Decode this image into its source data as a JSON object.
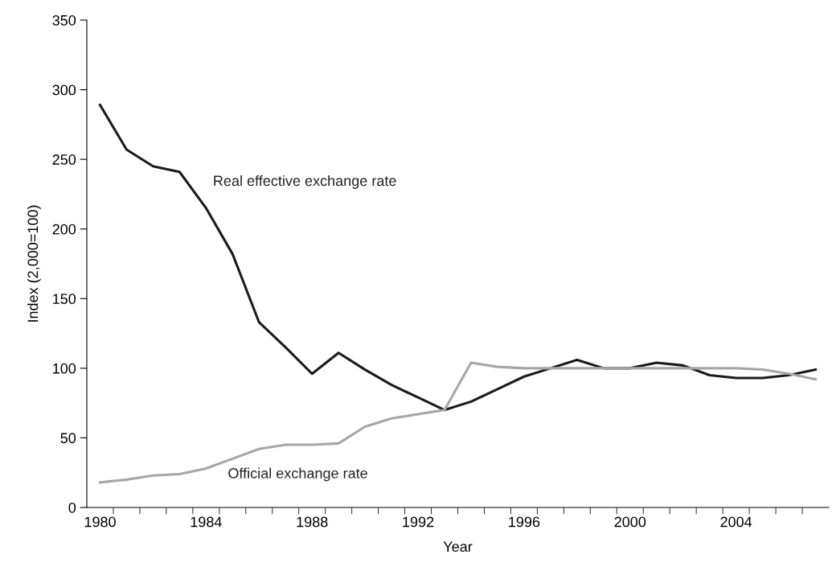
{
  "chart_data": {
    "type": "line",
    "xlabel": "Year",
    "ylabel": "Index (2,000=100)",
    "categories": [
      "1980",
      null,
      null,
      null,
      "1984",
      null,
      null,
      null,
      "1988",
      null,
      null,
      null,
      "1992",
      null,
      null,
      null,
      "1996",
      null,
      null,
      null,
      "2000",
      null,
      null,
      null,
      "2004",
      null,
      null,
      null
    ],
    "series": [
      {
        "name": "Real effective exchange rate",
        "color": "#1a1a1a",
        "values": [
          289,
          257,
          245,
          241,
          215,
          182,
          133,
          115,
          96,
          111,
          99,
          88,
          79,
          70,
          76,
          85,
          94,
          100,
          106,
          100,
          100,
          104,
          102,
          95,
          93,
          93,
          95,
          99
        ]
      },
      {
        "name": "Official exchange rate",
        "color": "#a6a6a8",
        "values": [
          18,
          20,
          23,
          24,
          28,
          35,
          42,
          45,
          45,
          46,
          58,
          64,
          67,
          70,
          104,
          101,
          100,
          100,
          100,
          100,
          100,
          100,
          100,
          100,
          100,
          99,
          96,
          92
        ]
      }
    ],
    "ylim": [
      0,
      350
    ],
    "yticks": [
      0,
      50,
      100,
      150,
      200,
      250,
      300,
      350
    ],
    "grid": false,
    "legend": false,
    "marker": "none",
    "line_style": "solid"
  }
}
